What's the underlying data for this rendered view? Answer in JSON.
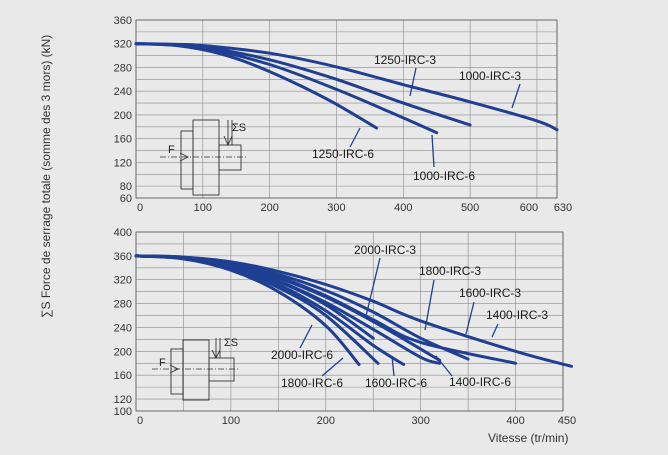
{
  "ylabel": "∑S Force de serrage totale (somme des 3 mors) (kN)",
  "xlabel": "Vitesse (tr/min)",
  "sketch": {
    "force_label": "F",
    "sum_label": "ΣS"
  },
  "chart_data": [
    {
      "type": "line",
      "xlim": [
        0,
        630
      ],
      "ylim": [
        60,
        360
      ],
      "x_ticks": [
        "0",
        "100",
        "200",
        "300",
        "400",
        "500",
        "600",
        "630"
      ],
      "y_ticks": [
        "360",
        "320",
        "280",
        "240",
        "200",
        "160",
        "120",
        "80",
        "60"
      ],
      "series": [
        {
          "name": "1250-IRC-3",
          "x": [
            0,
            50,
            100,
            200,
            300,
            400,
            500
          ],
          "y": [
            320,
            319,
            315,
            293,
            260,
            220,
            183
          ]
        },
        {
          "name": "1000-IRC-3",
          "x": [
            0,
            50,
            100,
            200,
            300,
            400,
            500,
            600,
            630
          ],
          "y": [
            320,
            319,
            317,
            304,
            281,
            251,
            222,
            190,
            175
          ]
        },
        {
          "name": "1250-IRC-6",
          "x": [
            0,
            50,
            100,
            150,
            200,
            250,
            300,
            360
          ],
          "y": [
            320,
            318,
            310,
            295,
            273,
            247,
            218,
            178
          ]
        },
        {
          "name": "1000-IRC-6",
          "x": [
            0,
            50,
            100,
            200,
            300,
            400,
            450
          ],
          "y": [
            320,
            318,
            313,
            285,
            243,
            195,
            170
          ]
        }
      ]
    },
    {
      "type": "line",
      "xlim": [
        0,
        450
      ],
      "ylim": [
        100,
        400
      ],
      "x_ticks": [
        "0",
        "100",
        "200",
        "300",
        "400",
        "450"
      ],
      "y_ticks": [
        "400",
        "360",
        "320",
        "280",
        "240",
        "200",
        "160",
        "120",
        "100"
      ],
      "series": [
        {
          "name": "2000-IRC-3",
          "x": [
            0,
            50,
            100,
            150,
            200,
            250
          ],
          "y": [
            360,
            357,
            343,
            317,
            278,
            222
          ]
        },
        {
          "name": "1800-IRC-3",
          "x": [
            0,
            50,
            100,
            150,
            200,
            250,
            320
          ],
          "y": [
            360,
            357,
            345,
            323,
            291,
            250,
            185
          ]
        },
        {
          "name": "1600-IRC-3",
          "x": [
            0,
            50,
            100,
            150,
            200,
            250,
            300,
            350
          ],
          "y": [
            360,
            358,
            348,
            329,
            302,
            266,
            222,
            187
          ]
        },
        {
          "name": "1400-IRC-3",
          "x": [
            0,
            50,
            100,
            150,
            200,
            250,
            300,
            400,
            460
          ],
          "y": [
            360,
            358,
            350,
            334,
            312,
            284,
            251,
            200,
            175
          ]
        },
        {
          "name": "2000-IRC-6",
          "x": [
            0,
            50,
            100,
            150,
            200,
            235
          ],
          "y": [
            360,
            355,
            336,
            300,
            243,
            178
          ]
        },
        {
          "name": "1800-IRC-6",
          "x": [
            0,
            50,
            100,
            150,
            200,
            255
          ],
          "y": [
            360,
            356,
            339,
            307,
            260,
            180
          ]
        },
        {
          "name": "1600-IRC-6",
          "x": [
            0,
            50,
            100,
            150,
            200,
            250,
            282
          ],
          "y": [
            360,
            356,
            341,
            312,
            268,
            210,
            178
          ]
        },
        {
          "name": "1400-IRC-6",
          "x": [
            0,
            50,
            100,
            150,
            200,
            250,
            300,
            320
          ],
          "y": [
            360,
            357,
            343,
            318,
            282,
            237,
            190,
            180
          ]
        },
        {
          "name": "1400-IRC-6b",
          "x": [
            0,
            50,
            100,
            150,
            200,
            250,
            300,
            400
          ],
          "y": [
            360,
            357,
            346,
            325,
            293,
            253,
            215,
            180
          ]
        }
      ]
    }
  ]
}
